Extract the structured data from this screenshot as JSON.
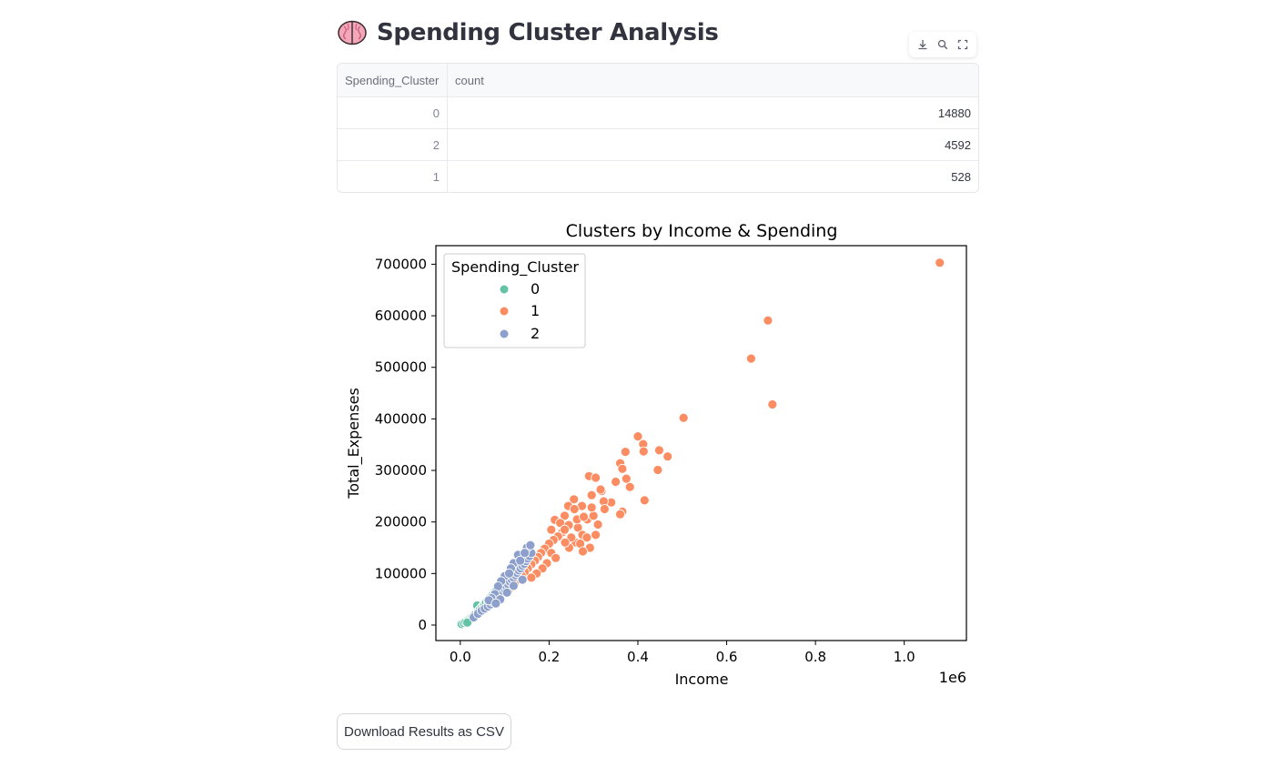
{
  "page": {
    "title": "Spending Cluster Analysis",
    "title_icon": "brain-icon"
  },
  "toolbar": {
    "icons": [
      "download-icon",
      "search-icon",
      "fullscreen-icon"
    ]
  },
  "table": {
    "columns": [
      "Spending_Cluster",
      "count"
    ],
    "rows": [
      {
        "Spending_Cluster": "0",
        "count": "14880"
      },
      {
        "Spending_Cluster": "2",
        "count": "4592"
      },
      {
        "Spending_Cluster": "1",
        "count": "528"
      }
    ]
  },
  "chart_data": {
    "type": "scatter",
    "title": "Clusters by Income & Spending",
    "xlabel": "Income",
    "ylabel": "Total_Expenses",
    "x_offset_label": "1e6",
    "xlim": [
      -0.055,
      1.14
    ],
    "ylim": [
      -30000,
      736000
    ],
    "x_ticks": [
      0.0,
      0.2,
      0.4,
      0.6,
      0.8,
      1.0
    ],
    "x_tick_labels": [
      "0.0",
      "0.2",
      "0.4",
      "0.6",
      "0.8",
      "1.0"
    ],
    "y_ticks": [
      0,
      100000,
      200000,
      300000,
      400000,
      500000,
      600000,
      700000
    ],
    "y_tick_labels": [
      "0",
      "100000",
      "200000",
      "300000",
      "400000",
      "500000",
      "600000",
      "700000"
    ],
    "grid": false,
    "legend": {
      "title": "Spending_Cluster",
      "placement": "top-left"
    },
    "series": [
      {
        "name": "0",
        "color": "#66c2a5",
        "points": [
          [
            0.003,
            2000
          ],
          [
            0.008,
            4000
          ],
          [
            0.012,
            6000
          ],
          [
            0.018,
            10000
          ],
          [
            0.022,
            12000
          ],
          [
            0.026,
            15000
          ],
          [
            0.03,
            18000
          ],
          [
            0.034,
            21000
          ],
          [
            0.038,
            38000
          ],
          [
            0.04,
            26000
          ],
          [
            0.044,
            30000
          ],
          [
            0.048,
            34000
          ],
          [
            0.052,
            37000
          ],
          [
            0.055,
            40000
          ],
          [
            0.058,
            44000
          ],
          [
            0.062,
            48000
          ],
          [
            0.066,
            52000
          ],
          [
            0.07,
            56000
          ],
          [
            0.074,
            60000
          ],
          [
            0.078,
            64000
          ],
          [
            0.082,
            68000
          ],
          [
            0.086,
            74000
          ],
          [
            0.09,
            78000
          ],
          [
            0.094,
            80000
          ],
          [
            0.06,
            35000
          ],
          [
            0.05,
            29000
          ],
          [
            0.028,
            13000
          ],
          [
            0.016,
            5000
          ]
        ]
      },
      {
        "name": "1",
        "color": "#fc8d62",
        "points": [
          [
            1.08,
            703000
          ],
          [
            0.693,
            591000
          ],
          [
            0.655,
            517000
          ],
          [
            0.703,
            428000
          ],
          [
            0.503,
            402000
          ],
          [
            0.4,
            366000
          ],
          [
            0.412,
            351000
          ],
          [
            0.372,
            336000
          ],
          [
            0.413,
            337000
          ],
          [
            0.448,
            339000
          ],
          [
            0.467,
            327000
          ],
          [
            0.36,
            314000
          ],
          [
            0.445,
            301000
          ],
          [
            0.365,
            303000
          ],
          [
            0.374,
            284000
          ],
          [
            0.35,
            278000
          ],
          [
            0.29,
            289000
          ],
          [
            0.305,
            286000
          ],
          [
            0.415,
            242000
          ],
          [
            0.34,
            238000
          ],
          [
            0.382,
            268000
          ],
          [
            0.365,
            220000
          ],
          [
            0.36,
            215000
          ],
          [
            0.318,
            260000
          ],
          [
            0.296,
            252000
          ],
          [
            0.274,
            231000
          ],
          [
            0.256,
            244000
          ],
          [
            0.243,
            231000
          ],
          [
            0.257,
            225000
          ],
          [
            0.235,
            212000
          ],
          [
            0.213,
            204000
          ],
          [
            0.225,
            198000
          ],
          [
            0.244,
            194000
          ],
          [
            0.265,
            189000
          ],
          [
            0.286,
            205000
          ],
          [
            0.3,
            212000
          ],
          [
            0.31,
            195000
          ],
          [
            0.275,
            175000
          ],
          [
            0.26,
            160000
          ],
          [
            0.245,
            150000
          ],
          [
            0.23,
            180000
          ],
          [
            0.22,
            172000
          ],
          [
            0.21,
            165000
          ],
          [
            0.2,
            158000
          ],
          [
            0.19,
            148000
          ],
          [
            0.182,
            140000
          ],
          [
            0.175,
            132000
          ],
          [
            0.168,
            125000
          ],
          [
            0.16,
            118000
          ],
          [
            0.152,
            110000
          ],
          [
            0.145,
            103000
          ],
          [
            0.138,
            96000
          ],
          [
            0.13,
            88000
          ],
          [
            0.122,
            80000
          ],
          [
            0.115,
            73000
          ],
          [
            0.108,
            66000
          ],
          [
            0.25,
            170000
          ],
          [
            0.27,
            158000
          ],
          [
            0.285,
            170000
          ],
          [
            0.292,
            150000
          ],
          [
            0.276,
            143000
          ],
          [
            0.236,
            160000
          ],
          [
            0.205,
            140000
          ],
          [
            0.195,
            120000
          ],
          [
            0.215,
            130000
          ],
          [
            0.185,
            110000
          ],
          [
            0.172,
            100000
          ],
          [
            0.16,
            92000
          ],
          [
            0.205,
            185000
          ],
          [
            0.235,
            185000
          ],
          [
            0.323,
            240000
          ],
          [
            0.296,
            228000
          ],
          [
            0.325,
            225000
          ],
          [
            0.305,
            175000
          ],
          [
            0.263,
            205000
          ],
          [
            0.278,
            210000
          ],
          [
            0.316,
            263000
          ]
        ]
      },
      {
        "name": "2",
        "color": "#8da0cb",
        "points": [
          [
            0.03,
            15000
          ],
          [
            0.04,
            22000
          ],
          [
            0.048,
            28000
          ],
          [
            0.055,
            32000
          ],
          [
            0.062,
            36000
          ],
          [
            0.068,
            40000
          ],
          [
            0.073,
            45000
          ],
          [
            0.078,
            50000
          ],
          [
            0.083,
            54000
          ],
          [
            0.088,
            58000
          ],
          [
            0.092,
            62000
          ],
          [
            0.096,
            66000
          ],
          [
            0.1,
            70000
          ],
          [
            0.104,
            74000
          ],
          [
            0.108,
            79000
          ],
          [
            0.112,
            84000
          ],
          [
            0.116,
            88000
          ],
          [
            0.12,
            92000
          ],
          [
            0.124,
            97000
          ],
          [
            0.128,
            101000
          ],
          [
            0.132,
            106000
          ],
          [
            0.136,
            110000
          ],
          [
            0.14,
            115000
          ],
          [
            0.144,
            119000
          ],
          [
            0.148,
            124000
          ],
          [
            0.152,
            129000
          ],
          [
            0.156,
            134000
          ],
          [
            0.16,
            140000
          ],
          [
            0.13,
            136000
          ],
          [
            0.12,
            120000
          ],
          [
            0.114,
            110000
          ],
          [
            0.1,
            95000
          ],
          [
            0.092,
            85000
          ],
          [
            0.085,
            75000
          ],
          [
            0.078,
            60000
          ],
          [
            0.07,
            52000
          ],
          [
            0.064,
            48000
          ],
          [
            0.11,
            100000
          ],
          [
            0.135,
            125000
          ],
          [
            0.15,
            150000
          ],
          [
            0.158,
            155000
          ],
          [
            0.145,
            140000
          ],
          [
            0.09,
            50000
          ],
          [
            0.08,
            42000
          ],
          [
            0.105,
            63000
          ],
          [
            0.12,
            76000
          ],
          [
            0.14,
            88000
          ]
        ]
      }
    ]
  },
  "download_button": {
    "label": "Download Results as CSV"
  }
}
